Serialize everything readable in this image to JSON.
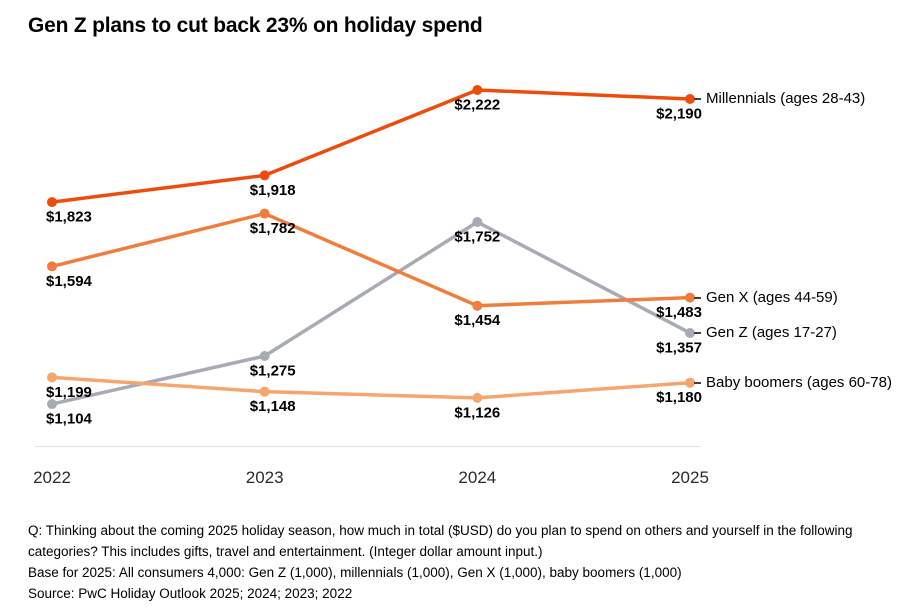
{
  "title": "Gen Z plans to cut back 23% on holiday spend",
  "chart_data": {
    "type": "line",
    "title": "Gen Z plans to cut back 23% on holiday spend",
    "categories": [
      "2022",
      "2023",
      "2024",
      "2025"
    ],
    "series": [
      {
        "name": "Millennials (ages 28-43)",
        "values": [
          1823,
          1918,
          2222,
          2190
        ],
        "labels": [
          "$1,823",
          "$1,918",
          "$2,222",
          "$2,190"
        ],
        "color": "#ee4c0c"
      },
      {
        "name": "Gen X (ages 44-59)",
        "values": [
          1594,
          1782,
          1454,
          1483
        ],
        "labels": [
          "$1,594",
          "$1,782",
          "$1,454",
          "$1,483"
        ],
        "color": "#f07d3e"
      },
      {
        "name": "Gen Z (ages 17-27)",
        "values": [
          1104,
          1275,
          1752,
          1357
        ],
        "labels": [
          "$1,104",
          "$1,275",
          "$1,752",
          "$1,357"
        ],
        "color": "#a7abb4"
      },
      {
        "name": "Baby boomers (ages 60-78)",
        "values": [
          1199,
          1148,
          1126,
          1180
        ],
        "labels": [
          "$1,199",
          "$1,148",
          "$1,126",
          "$1,180"
        ],
        "color": "#f6a56e"
      }
    ],
    "xlabel": "",
    "ylabel": "",
    "ylim": [
      1000,
      2300
    ],
    "grid": false,
    "legend_position": "right",
    "data_label_color": "#000000",
    "axis_line_color": "#e3e3e3"
  },
  "footer": {
    "question": "Q: Thinking about the coming 2025 holiday season, how much in total ($USD) do you plan to spend on others and yourself in the following categories? This includes gifts, travel and entertainment. (Integer dollar amount input.)",
    "base": "Base for 2025: All consumers 4,000: Gen Z (1,000), millennials (1,000), Gen X (1,000), baby boomers (1,000)",
    "source": "Source: PwC Holiday Outlook 2025; 2024; 2023; 2022"
  }
}
